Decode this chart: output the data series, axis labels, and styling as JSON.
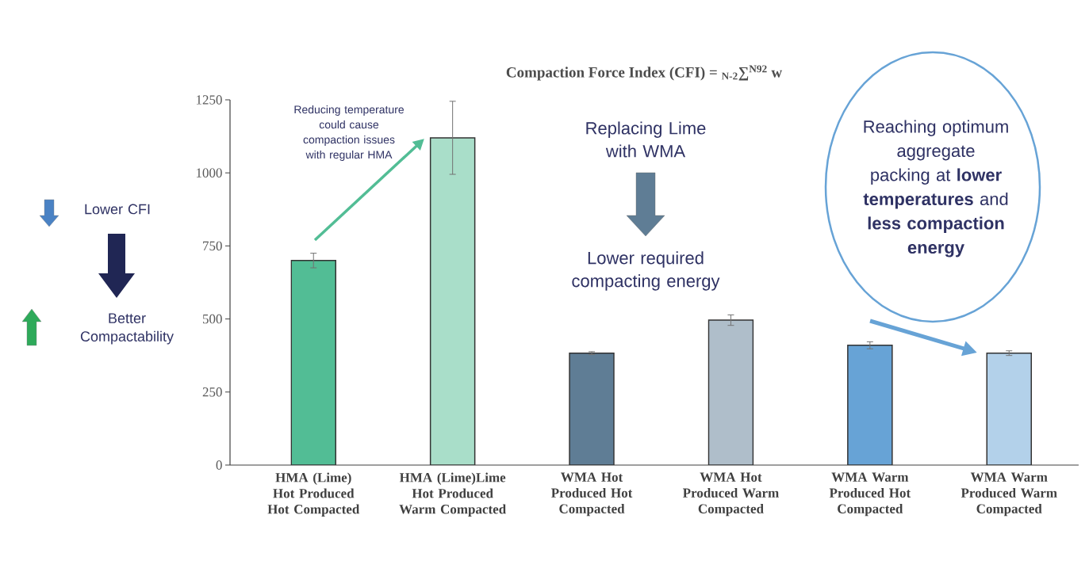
{
  "chart_data": {
    "type": "bar",
    "title": "Compaction Force Index (CFI) = $_{N-2}$∑$^{N92}$ w",
    "categories": [
      "HMA (Lime) Hot Produced Hot Compacted",
      "HMA (Lime)Lime Hot Produced Warm Compacted",
      "WMA Hot Produced Hot Compacted",
      "WMA Hot Produced Warm Compacted",
      "WMA Warm Produced Hot Compacted",
      "WMA Warm Produced Warm Compacted"
    ],
    "values": [
      700,
      1120,
      383,
      496,
      410,
      383
    ],
    "errors": [
      25,
      125,
      5,
      18,
      12,
      8
    ],
    "colors": [
      "#52bd95",
      "#a9dec9",
      "#5f7d95",
      "#afbeca",
      "#67a3d6",
      "#b3d1ea"
    ],
    "ylim": [
      0,
      1250
    ],
    "yticks": [
      0,
      250,
      500,
      750,
      1000,
      1250
    ],
    "annotations": [
      "Reducing temperature could cause compaction issues with regular HMA",
      "Replacing Lime with WMA",
      "Lower required compacting energy",
      "Reaching optimum aggregate packing at **lower temperatures** and **less compaction energy**",
      "Lower CFI",
      "Better Compactability"
    ]
  }
}
